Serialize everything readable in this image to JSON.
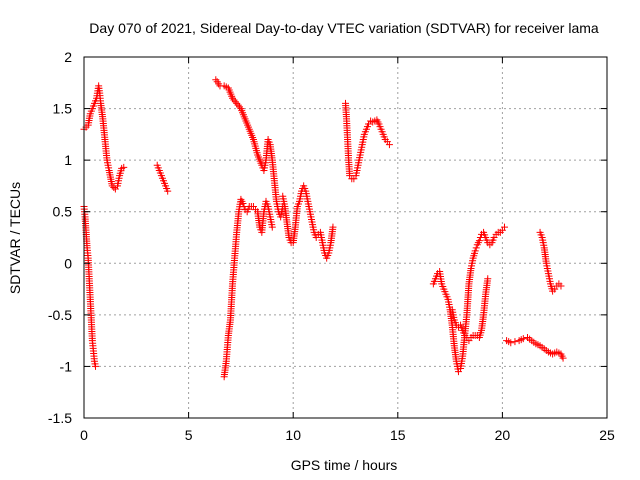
{
  "chart_data": {
    "type": "scatter",
    "title": "Day 070 of 2021, Sidereal Day-to-day VTEC variation (SDTVAR) for receiver lama",
    "xlabel": "GPS time / hours",
    "ylabel": "SDTVAR / TECUs",
    "xlim": [
      0,
      25
    ],
    "ylim": [
      -1.5,
      2
    ],
    "xticks": [
      0,
      5,
      10,
      15,
      20,
      25
    ],
    "yticks": [
      -1.5,
      -1,
      -0.5,
      0,
      0.5,
      1,
      1.5,
      2
    ],
    "xtick_labels": [
      "0",
      "5",
      "10",
      "15",
      "20",
      "25"
    ],
    "ytick_labels": [
      "-1.5",
      "-1",
      "-0.5",
      "0",
      "0.5",
      "1",
      "1.5",
      "2"
    ],
    "grid": true,
    "marker": "+",
    "color": "#ff0000",
    "series": [
      {
        "name": "seg1",
        "points": [
          [
            0.0,
            1.3
          ],
          [
            0.1,
            1.32
          ],
          [
            0.2,
            1.34
          ],
          [
            0.3,
            1.45
          ],
          [
            0.4,
            1.5
          ],
          [
            0.5,
            1.55
          ],
          [
            0.6,
            1.6
          ],
          [
            0.7,
            1.72
          ],
          [
            0.75,
            1.65
          ],
          [
            0.8,
            1.55
          ],
          [
            0.9,
            1.4
          ],
          [
            1.0,
            1.2
          ],
          [
            1.1,
            1.0
          ],
          [
            1.2,
            0.9
          ],
          [
            1.35,
            0.75
          ],
          [
            1.5,
            0.72
          ],
          [
            1.6,
            0.75
          ],
          [
            1.7,
            0.85
          ],
          [
            1.8,
            0.92
          ],
          [
            1.9,
            0.93
          ]
        ]
      },
      {
        "name": "seg2",
        "points": [
          [
            0.0,
            0.55
          ],
          [
            0.05,
            0.45
          ],
          [
            0.1,
            0.3
          ],
          [
            0.15,
            0.15
          ],
          [
            0.2,
            0.05
          ],
          [
            0.25,
            -0.15
          ],
          [
            0.3,
            -0.35
          ],
          [
            0.35,
            -0.55
          ],
          [
            0.4,
            -0.75
          ],
          [
            0.45,
            -0.85
          ],
          [
            0.5,
            -0.95
          ],
          [
            0.55,
            -1.0
          ]
        ]
      },
      {
        "name": "seg3",
        "points": [
          [
            3.5,
            0.95
          ],
          [
            3.6,
            0.9
          ],
          [
            3.7,
            0.85
          ],
          [
            3.8,
            0.8
          ],
          [
            3.9,
            0.75
          ],
          [
            4.0,
            0.7
          ]
        ]
      },
      {
        "name": "seg4",
        "points": [
          [
            6.3,
            1.78
          ],
          [
            6.5,
            1.72
          ],
          [
            6.7,
            1.72
          ],
          [
            6.9,
            1.7
          ],
          [
            7.1,
            1.6
          ],
          [
            7.3,
            1.55
          ],
          [
            7.5,
            1.5
          ],
          [
            7.7,
            1.4
          ],
          [
            7.9,
            1.3
          ],
          [
            8.1,
            1.2
          ],
          [
            8.3,
            1.05
          ],
          [
            8.5,
            0.95
          ],
          [
            8.6,
            0.9
          ],
          [
            8.7,
            1.0
          ],
          [
            8.8,
            1.2
          ],
          [
            8.9,
            1.15
          ],
          [
            9.0,
            1.0
          ],
          [
            9.1,
            0.8
          ],
          [
            9.2,
            0.6
          ],
          [
            9.3,
            0.5
          ],
          [
            9.4,
            0.45
          ],
          [
            9.5,
            0.55
          ]
        ]
      },
      {
        "name": "seg5",
        "points": [
          [
            6.7,
            -1.1
          ],
          [
            6.8,
            -0.95
          ],
          [
            6.9,
            -0.7
          ],
          [
            7.0,
            -0.55
          ],
          [
            7.1,
            -0.2
          ],
          [
            7.2,
            0.05
          ],
          [
            7.3,
            0.3
          ],
          [
            7.4,
            0.5
          ],
          [
            7.5,
            0.62
          ],
          [
            7.6,
            0.58
          ],
          [
            7.7,
            0.52
          ],
          [
            7.8,
            0.5
          ],
          [
            7.9,
            0.55
          ],
          [
            8.0,
            0.55
          ],
          [
            8.1,
            0.55
          ],
          [
            8.2,
            0.52
          ],
          [
            8.3,
            0.5
          ],
          [
            8.4,
            0.35
          ],
          [
            8.5,
            0.3
          ],
          [
            8.6,
            0.5
          ],
          [
            8.7,
            0.6
          ],
          [
            8.8,
            0.55
          ],
          [
            8.9,
            0.45
          ],
          [
            9.0,
            0.35
          ]
        ]
      },
      {
        "name": "seg6",
        "points": [
          [
            9.5,
            0.65
          ],
          [
            9.6,
            0.55
          ],
          [
            9.7,
            0.4
          ],
          [
            9.8,
            0.25
          ],
          [
            9.9,
            0.2
          ],
          [
            10.0,
            0.2
          ],
          [
            10.1,
            0.35
          ],
          [
            10.2,
            0.55
          ],
          [
            10.3,
            0.6
          ],
          [
            10.4,
            0.7
          ],
          [
            10.5,
            0.75
          ],
          [
            10.6,
            0.7
          ],
          [
            10.7,
            0.6
          ],
          [
            10.8,
            0.5
          ],
          [
            10.9,
            0.4
          ],
          [
            11.0,
            0.3
          ],
          [
            11.1,
            0.25
          ],
          [
            11.2,
            0.28
          ],
          [
            11.3,
            0.3
          ],
          [
            11.4,
            0.2
          ],
          [
            11.5,
            0.1
          ],
          [
            11.6,
            0.05
          ],
          [
            11.7,
            0.1
          ],
          [
            11.8,
            0.2
          ],
          [
            11.9,
            0.35
          ]
        ]
      },
      {
        "name": "seg7",
        "points": [
          [
            12.5,
            1.55
          ],
          [
            12.55,
            1.4
          ],
          [
            12.6,
            1.2
          ],
          [
            12.65,
            1.0
          ],
          [
            12.7,
            0.85
          ],
          [
            12.8,
            0.82
          ],
          [
            12.9,
            0.82
          ],
          [
            13.0,
            0.85
          ],
          [
            13.1,
            0.95
          ],
          [
            13.2,
            1.05
          ],
          [
            13.3,
            1.15
          ],
          [
            13.4,
            1.25
          ],
          [
            13.5,
            1.3
          ],
          [
            13.6,
            1.35
          ],
          [
            13.7,
            1.38
          ],
          [
            13.8,
            1.37
          ],
          [
            13.9,
            1.38
          ],
          [
            14.0,
            1.39
          ],
          [
            14.1,
            1.35
          ],
          [
            14.2,
            1.3
          ],
          [
            14.3,
            1.25
          ],
          [
            14.4,
            1.2
          ],
          [
            14.5,
            1.18
          ],
          [
            14.6,
            1.15
          ]
        ]
      },
      {
        "name": "seg8",
        "points": [
          [
            16.7,
            -0.2
          ],
          [
            16.8,
            -0.15
          ],
          [
            16.9,
            -0.1
          ],
          [
            17.0,
            -0.08
          ],
          [
            17.1,
            -0.2
          ],
          [
            17.2,
            -0.25
          ],
          [
            17.3,
            -0.3
          ],
          [
            17.4,
            -0.35
          ],
          [
            17.5,
            -0.45
          ],
          [
            17.6,
            -0.6
          ],
          [
            17.7,
            -0.8
          ],
          [
            17.8,
            -0.95
          ],
          [
            17.9,
            -1.05
          ],
          [
            18.0,
            -1.02
          ],
          [
            18.1,
            -0.9
          ],
          [
            18.2,
            -0.7
          ],
          [
            18.3,
            -0.5
          ],
          [
            18.4,
            -0.2
          ],
          [
            18.5,
            -0.05
          ],
          [
            18.6,
            0.05
          ],
          [
            18.7,
            0.12
          ],
          [
            18.8,
            0.18
          ],
          [
            18.9,
            0.22
          ],
          [
            19.0,
            0.28
          ],
          [
            19.1,
            0.3
          ],
          [
            19.2,
            0.25
          ],
          [
            19.3,
            0.2
          ],
          [
            19.4,
            0.18
          ],
          [
            19.5,
            0.2
          ],
          [
            19.6,
            0.25
          ],
          [
            19.7,
            0.28
          ],
          [
            19.8,
            0.3
          ],
          [
            19.9,
            0.3
          ],
          [
            20.0,
            0.32
          ],
          [
            20.1,
            0.35
          ]
        ]
      },
      {
        "name": "seg9",
        "points": [
          [
            17.6,
            -0.45
          ],
          [
            17.7,
            -0.55
          ],
          [
            17.8,
            -0.6
          ],
          [
            17.9,
            -0.62
          ],
          [
            18.0,
            -0.6
          ],
          [
            18.1,
            -0.65
          ],
          [
            18.2,
            -0.7
          ],
          [
            18.3,
            -0.72
          ],
          [
            18.4,
            -0.75
          ],
          [
            18.5,
            -0.72
          ],
          [
            18.6,
            -0.7
          ],
          [
            18.7,
            -0.7
          ],
          [
            18.8,
            -0.7
          ],
          [
            18.9,
            -0.72
          ],
          [
            19.0,
            -0.65
          ],
          [
            19.1,
            -0.5
          ],
          [
            19.2,
            -0.3
          ],
          [
            19.3,
            -0.15
          ]
        ]
      },
      {
        "name": "seg10",
        "points": [
          [
            20.2,
            -0.75
          ],
          [
            20.4,
            -0.77
          ],
          [
            20.6,
            -0.76
          ],
          [
            20.8,
            -0.75
          ],
          [
            21.0,
            -0.73
          ],
          [
            21.2,
            -0.72
          ],
          [
            21.4,
            -0.75
          ],
          [
            21.6,
            -0.78
          ],
          [
            21.8,
            -0.8
          ],
          [
            22.0,
            -0.83
          ],
          [
            22.2,
            -0.86
          ],
          [
            22.4,
            -0.88
          ],
          [
            22.6,
            -0.86
          ],
          [
            22.8,
            -0.88
          ],
          [
            22.9,
            -0.92
          ]
        ]
      },
      {
        "name": "seg11",
        "points": [
          [
            21.8,
            0.3
          ],
          [
            21.9,
            0.25
          ],
          [
            22.0,
            0.15
          ],
          [
            22.1,
            0.0
          ],
          [
            22.2,
            -0.1
          ],
          [
            22.3,
            -0.2
          ],
          [
            22.4,
            -0.27
          ],
          [
            22.5,
            -0.25
          ],
          [
            22.6,
            -0.22
          ],
          [
            22.7,
            -0.2
          ],
          [
            22.8,
            -0.22
          ]
        ]
      }
    ]
  }
}
